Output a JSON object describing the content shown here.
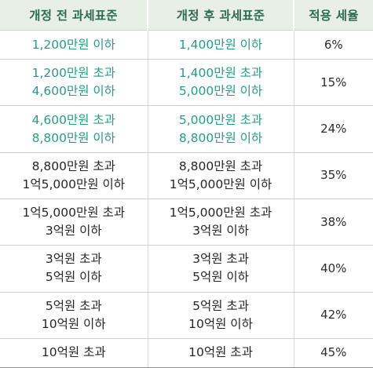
{
  "table": {
    "headers": [
      "개정 전 과세표준",
      "개정 후 과세표준",
      "적용 세율"
    ],
    "rows": [
      {
        "before": [
          "1,200만원 이하"
        ],
        "after": [
          "1,400만원 이하"
        ],
        "rate": "6%"
      },
      {
        "before": [
          "1,200만원 초과",
          "4,600만원 이하"
        ],
        "after": [
          "1,400만원 초과",
          "5,000만원 이하"
        ],
        "rate": "15%"
      },
      {
        "before": [
          "4,600만원 초과",
          "8,800만원 이하"
        ],
        "after": [
          "5,000만원 초과",
          "8,800만원 이하"
        ],
        "rate": "24%"
      },
      {
        "before": [
          "8,800만원 초과",
          "1억5,000만원 이하"
        ],
        "after": [
          "8,800만원 초과",
          "1억5,000만원 이하"
        ],
        "rate": "35%"
      },
      {
        "before": [
          "1억5,000만원 초과",
          "3억원 이하"
        ],
        "after": [
          "1억5,000만원 초과",
          "3억원 이하"
        ],
        "rate": "38%"
      },
      {
        "before": [
          "3억원 초과",
          "5억원 이하"
        ],
        "after": [
          "3억원 초과",
          "5억원 이하"
        ],
        "rate": "40%"
      },
      {
        "before": [
          "5억원 초과",
          "10억원 이하"
        ],
        "after": [
          "5억원 초과",
          "10억원 이하"
        ],
        "rate": "42%"
      },
      {
        "before": [
          "10억원 초과"
        ],
        "after": [
          "10억원 초과"
        ],
        "rate": "45%"
      }
    ]
  },
  "colors": {
    "header_background": "#e7efe7",
    "header_text": "#2f6b52",
    "changed_range_text": "#2a9a86",
    "body_text": "#262626"
  }
}
